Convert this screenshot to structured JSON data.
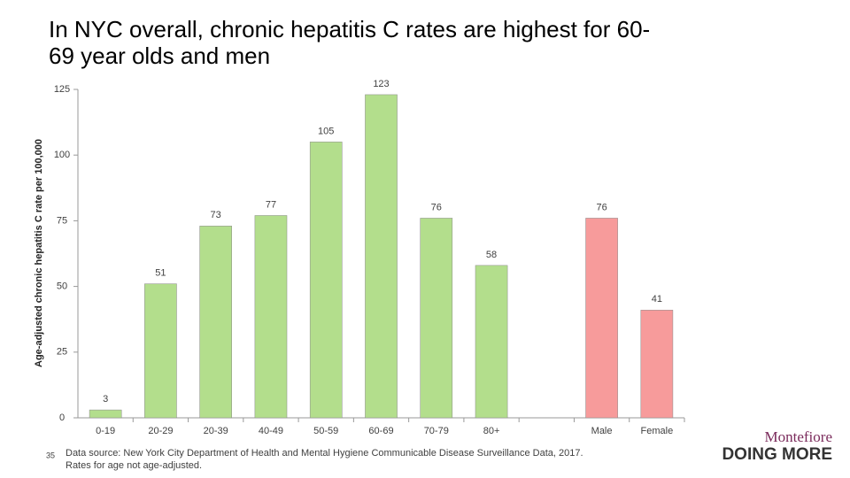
{
  "chart_data": {
    "type": "bar",
    "title": "In NYC overall, chronic hepatitis C rates are highest for 60-69 year olds and men",
    "y_label": "Age-adjusted chronic hepatitis C rate per 100,000",
    "categories": [
      "0-19",
      "20-29",
      "20-39",
      "40-49",
      "50-59",
      "60-69",
      "70-79",
      "80+",
      null,
      "Male",
      "Female"
    ],
    "values": [
      3,
      51,
      73,
      77,
      105,
      123,
      76,
      58,
      null,
      76,
      41
    ],
    "colors": [
      "#b3de8c",
      "#b3de8c",
      "#b3de8c",
      "#b3de8c",
      "#b3de8c",
      "#b3de8c",
      "#b3de8c",
      "#b3de8c",
      null,
      "#f79b9b",
      "#f79b9b"
    ],
    "ylim": [
      0,
      125
    ],
    "yticks": [
      0,
      25,
      50,
      75,
      100,
      125
    ],
    "grid": false
  },
  "slide": {
    "page_number": "35",
    "source": [
      "Data source: New York City Department of Health and Mental Hygiene Communicable Disease Surveillance Data, 2017.",
      "Rates for age not age-adjusted."
    ],
    "logo": {
      "name": "Montefiore",
      "tagline": "DOING MORE"
    }
  }
}
